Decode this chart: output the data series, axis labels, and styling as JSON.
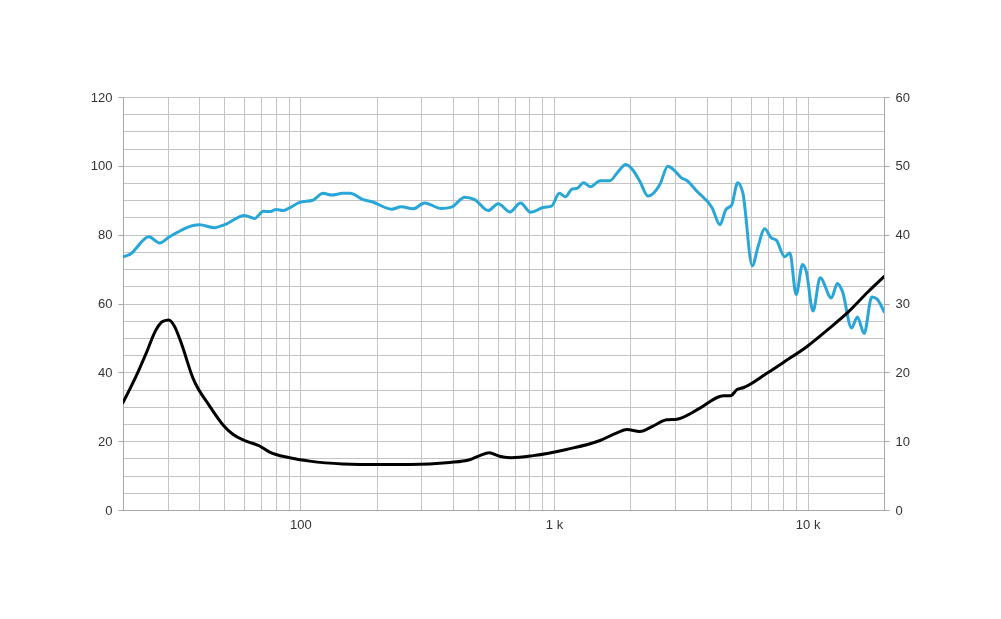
{
  "chart_data": {
    "type": "line",
    "log": "x",
    "grid": true,
    "line_style": "solid",
    "xlim": [
      20,
      20000
    ],
    "xticks": [
      {
        "value": 30,
        "label": null
      },
      {
        "value": 40,
        "label": null
      },
      {
        "value": 50,
        "label": null
      },
      {
        "value": 60,
        "label": null
      },
      {
        "value": 70,
        "label": null
      },
      {
        "value": 80,
        "label": null
      },
      {
        "value": 90,
        "label": null
      },
      100,
      {
        "value": 200,
        "label": null
      },
      {
        "value": 300,
        "label": null
      },
      {
        "value": 400,
        "label": null
      },
      {
        "value": 500,
        "label": null
      },
      {
        "value": 600,
        "label": null
      },
      {
        "value": 700,
        "label": null
      },
      {
        "value": 800,
        "label": null
      },
      {
        "value": 900,
        "label": null
      },
      {
        "value": 1000,
        "label": "1 k"
      },
      {
        "value": 2000,
        "label": null
      },
      {
        "value": 3000,
        "label": null
      },
      {
        "value": 4000,
        "label": null
      },
      {
        "value": 5000,
        "label": null
      },
      {
        "value": 6000,
        "label": null
      },
      {
        "value": 7000,
        "label": null
      },
      {
        "value": 8000,
        "label": null
      },
      {
        "value": 9000,
        "label": null
      },
      {
        "value": 10000,
        "label": "10 k"
      }
    ],
    "ylim": [
      0,
      120
    ],
    "yticks": [
      0,
      {
        "value": 5,
        "label": null
      },
      {
        "value": 10,
        "label": null
      },
      {
        "value": 15,
        "label": null
      },
      20,
      {
        "value": 25,
        "label": null
      },
      {
        "value": 30,
        "label": null
      },
      {
        "value": 35,
        "label": null
      },
      40,
      {
        "value": 45,
        "label": null
      },
      {
        "value": 50,
        "label": null
      },
      {
        "value": 55,
        "label": null
      },
      60,
      {
        "value": 65,
        "label": null
      },
      {
        "value": 70,
        "label": null
      },
      {
        "value": 75,
        "label": null
      },
      80,
      {
        "value": 85,
        "label": null
      },
      {
        "value": 90,
        "label": null
      },
      {
        "value": 95,
        "label": null
      },
      100,
      {
        "value": 105,
        "label": null
      },
      {
        "value": 110,
        "label": null
      },
      {
        "value": 115,
        "label": null
      },
      120
    ],
    "y2lim": [
      0,
      60
    ],
    "y2ticks": [
      0,
      10,
      20,
      30,
      40,
      50,
      60
    ],
    "series": [
      {
        "color": "#29a6d8",
        "x": [
          20,
          21.2,
          25.3,
          27.9,
          30.5,
          40.1,
          45.9,
          50.3,
          60.3,
          66,
          71.6,
          75.7,
          80.4,
          85.4,
          90.7,
          99.4,
          112,
          123,
          133,
          147,
          157,
          177,
          193,
          229,
          250,
          278,
          309,
          360,
          394,
          445,
          487,
          550,
          603,
          670,
          738,
          809,
          906,
          978,
          1050,
          1110,
          1180,
          1230,
          1310,
          1390,
          1520,
          1660,
          1790,
          1920,
          2050,
          2180,
          2350,
          2620,
          2810,
          2940,
          3180,
          3330,
          3660,
          4200,
          4510,
          4760,
          5010,
          5300,
          5550,
          6050,
          6380,
          6770,
          7180,
          7520,
          8120,
          8510,
          9010,
          9550,
          9870,
          10500,
          11200,
          12400,
          13100,
          13700,
          14900,
          15700,
          16700,
          17900,
          18700,
          20000
        ],
        "values": [
          73.6,
          74.2,
          79.4,
          77.6,
          79.4,
          82.9,
          82.0,
          82.9,
          85.6,
          84.7,
          86.8,
          86.7,
          87.3,
          87.0,
          87.8,
          89.4,
          90.0,
          92.0,
          91.5,
          92.0,
          92.0,
          90.2,
          89.5,
          87.4,
          88.1,
          87.5,
          89.2,
          87.6,
          88.0,
          90.9,
          90.2,
          87.0,
          89.0,
          86.6,
          89.2,
          86.5,
          87.9,
          88.3,
          92.0,
          91.0,
          93.3,
          93.4,
          95.1,
          93.9,
          95.7,
          95.7,
          98.3,
          100.4,
          98.7,
          95.5,
          91.2,
          94.7,
          99.9,
          99.1,
          96.5,
          95.8,
          92.6,
          87.8,
          82.9,
          87.3,
          88.5,
          95.1,
          92.2,
          71.0,
          76.6,
          81.7,
          79.1,
          78.4,
          73.6,
          74.7,
          62.6,
          71.3,
          69.4,
          57.8,
          67.5,
          61.6,
          65.8,
          63.6,
          52.9,
          56.1,
          51.3,
          61.9,
          61.4,
          57.6
        ]
      },
      {
        "color": "#000000",
        "axis": "y2",
        "x": [
          20,
          22.5,
          24.7,
          27,
          28.7,
          30.3,
          31.9,
          33.9,
          37.7,
          43.9,
          49.5,
          54.2,
          61.2,
          69.1,
          75.7,
          90.7,
          109,
          147,
          199,
          270,
          388,
          465,
          510,
          555,
          610,
          680,
          828,
          1120,
          1520,
          1770,
          1940,
          2180,
          2460,
          2780,
          3050,
          3760,
          4510,
          4660,
          4960,
          5270,
          5600,
          6930,
          8070,
          9980,
          12000,
          14400,
          17200,
          20000
        ],
        "values": [
          15.6,
          19.4,
          22.8,
          26.2,
          27.4,
          27.6,
          26.7,
          24.3,
          19.2,
          15.1,
          12.4,
          11.0,
          10.0,
          9.3,
          8.4,
          7.6,
          7.1,
          6.7,
          6.6,
          6.6,
          6.9,
          7.3,
          7.9,
          8.3,
          7.8,
          7.6,
          7.9,
          8.8,
          10.1,
          11.2,
          11.7,
          11.4,
          12.2,
          13.1,
          13.2,
          14.8,
          16.5,
          16.6,
          16.6,
          17.5,
          17.8,
          19.9,
          21.5,
          23.8,
          26.2,
          28.7,
          31.6,
          33.9
        ]
      }
    ]
  }
}
